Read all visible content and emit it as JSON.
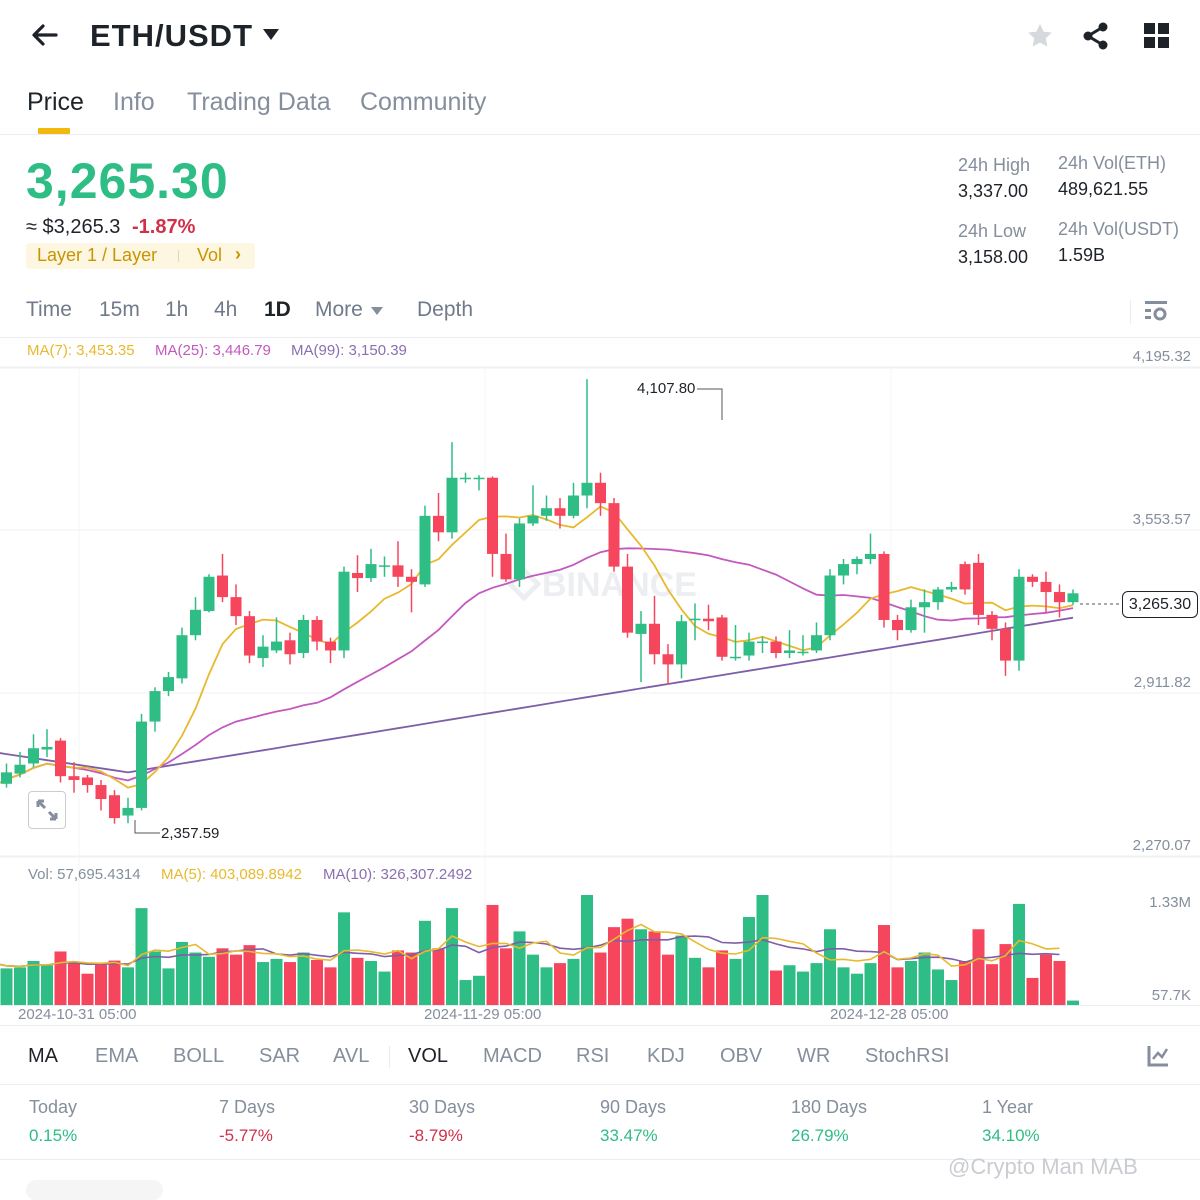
{
  "header": {
    "pair": "ETH/USDT",
    "icons": [
      "back-arrow-icon",
      "star-icon",
      "share-icon",
      "grid-icon"
    ]
  },
  "tabs": [
    {
      "label": "Price",
      "active": true
    },
    {
      "label": "Info",
      "active": false
    },
    {
      "label": "Trading Data",
      "active": false
    },
    {
      "label": "Community",
      "active": false
    }
  ],
  "ticker": {
    "last_price": "3,265.30",
    "approx_usd": "≈ $3,265.3",
    "change_pct": "-1.87%",
    "tag_category": "Layer 1 / Layer",
    "tag_vol": "Vol",
    "tag_chevron": "›",
    "high_label": "24h High",
    "high_value": "3,337.00",
    "low_label": "24h Low",
    "low_value": "3,158.00",
    "vol_base_label": "24h Vol(ETH)",
    "vol_base_value": "489,621.55",
    "vol_quote_label": "24h Vol(USDT)",
    "vol_quote_value": "1.59B"
  },
  "timeframes": {
    "items": [
      "Time",
      "15m",
      "1h",
      "4h",
      "1D",
      "More",
      "Depth"
    ],
    "active": "1D"
  },
  "ma_legend": {
    "ma7": "MA(7): 3,453.35",
    "ma25": "MA(25): 3,446.79",
    "ma99": "MA(99): 3,150.39"
  },
  "price_axis": [
    "4,195.32",
    "3,553.57",
    "2,911.82",
    "2,270.07"
  ],
  "annotations": {
    "high": "4,107.80",
    "low": "2,357.59",
    "last": "3,265.30"
  },
  "vol_legend": {
    "vol": "Vol: 57,695.4314",
    "ma5": "MA(5): 403,089.8942",
    "ma10": "MA(10): 326,307.2492"
  },
  "vol_axis": [
    "1.33M",
    "57.7K"
  ],
  "date_axis": [
    "2024-10-31 05:00",
    "2024-11-29 05:00",
    "2024-12-28 05:00"
  ],
  "watermark_chart": "BINANCE",
  "indicators": {
    "items": [
      "MA",
      "EMA",
      "BOLL",
      "SAR",
      "AVL",
      "VOL",
      "MACD",
      "RSI",
      "KDJ",
      "OBV",
      "WR",
      "StochRSI"
    ],
    "active": [
      "MA",
      "VOL"
    ]
  },
  "performance": [
    {
      "label": "Today",
      "value": "0.15%",
      "dir": "up"
    },
    {
      "label": "7 Days",
      "value": "-5.77%",
      "dir": "down"
    },
    {
      "label": "30 Days",
      "value": "-8.79%",
      "dir": "down"
    },
    {
      "label": "90 Days",
      "value": "33.47%",
      "dir": "up"
    },
    {
      "label": "180 Days",
      "value": "26.79%",
      "dir": "up"
    },
    {
      "label": "1 Year",
      "value": "34.10%",
      "dir": "up"
    }
  ],
  "watermark": "@Crypto Man MAB",
  "colors": {
    "up": "#2ebd85",
    "down": "#f6465d",
    "ma7": "#e8b92e",
    "ma25": "#c359bf",
    "ma99": "#7f5ea8",
    "accent": "#f0b90b"
  },
  "chart_data": {
    "type": "candlestick",
    "title": "ETH/USDT 1D",
    "ylim": [
      2270.07,
      4195.32
    ],
    "y_ticks": [
      4195.32,
      3553.57,
      2911.82,
      2270.07
    ],
    "x_ticks": [
      "2024-10-31 05:00",
      "2024-11-29 05:00",
      "2024-12-28 05:00"
    ],
    "ohlc": [
      [
        2545,
        2505,
        2600,
        2480
      ],
      [
        2515,
        2560,
        2595,
        2500
      ],
      [
        2555,
        2590,
        2640,
        2540
      ],
      [
        2595,
        2655,
        2710,
        2580
      ],
      [
        2650,
        2660,
        2730,
        2620
      ],
      [
        2685,
        2545,
        2695,
        2520
      ],
      [
        2545,
        2530,
        2600,
        2480
      ],
      [
        2540,
        2510,
        2550,
        2480
      ],
      [
        2510,
        2455,
        2530,
        2410
      ],
      [
        2470,
        2380,
        2490,
        2358
      ],
      [
        2390,
        2420,
        2460,
        2360
      ],
      [
        2420,
        2760,
        2790,
        2410
      ],
      [
        2760,
        2880,
        2895,
        2720
      ],
      [
        2880,
        2935,
        2955,
        2860
      ],
      [
        2930,
        3100,
        3130,
        2910
      ],
      [
        3100,
        3200,
        3250,
        3080
      ],
      [
        3195,
        3330,
        3340,
        3190
      ],
      [
        3335,
        3250,
        3420,
        3230
      ],
      [
        3250,
        3175,
        3300,
        3140
      ],
      [
        3175,
        3020,
        3195,
        2990
      ],
      [
        3010,
        3055,
        3100,
        2975
      ],
      [
        3040,
        3075,
        3170,
        3030
      ],
      [
        3080,
        3025,
        3110,
        2985
      ],
      [
        3030,
        3160,
        3180,
        3010
      ],
      [
        3160,
        3075,
        3175,
        3040
      ],
      [
        3075,
        3040,
        3090,
        2990
      ],
      [
        3040,
        3350,
        3370,
        3010
      ],
      [
        3345,
        3325,
        3415,
        3270
      ],
      [
        3325,
        3380,
        3440,
        3310
      ],
      [
        3375,
        3375,
        3410,
        3330
      ],
      [
        3375,
        3330,
        3470,
        3290
      ],
      [
        3330,
        3310,
        3360,
        3190
      ],
      [
        3300,
        3570,
        3610,
        3290
      ],
      [
        3570,
        3505,
        3660,
        3470
      ],
      [
        3505,
        3720,
        3860,
        3480
      ],
      [
        3720,
        3720,
        3740,
        3700
      ],
      [
        3720,
        3720,
        3730,
        3670
      ],
      [
        3720,
        3420,
        3725,
        3330
      ],
      [
        3420,
        3320,
        3500,
        3310
      ],
      [
        3320,
        3540,
        3560,
        3290
      ],
      [
        3540,
        3570,
        3690,
        3530
      ],
      [
        3570,
        3600,
        3650,
        3550
      ],
      [
        3600,
        3570,
        3640,
        3520
      ],
      [
        3570,
        3650,
        3700,
        3560
      ],
      [
        3650,
        3700,
        4108,
        3600
      ],
      [
        3700,
        3620,
        3740,
        3570
      ],
      [
        3620,
        3370,
        3640,
        3350
      ],
      [
        3370,
        3110,
        3420,
        3090
      ],
      [
        3105,
        3145,
        3195,
        2915
      ],
      [
        3145,
        3025,
        3255,
        2985
      ],
      [
        3025,
        2985,
        3065,
        2905
      ],
      [
        2985,
        3155,
        3180,
        2930
      ],
      [
        3160,
        3165,
        3225,
        3080
      ],
      [
        3165,
        3155,
        3220,
        3120
      ],
      [
        3170,
        3015,
        3180,
        3000
      ],
      [
        3015,
        3015,
        3140,
        3000
      ],
      [
        3020,
        3075,
        3110,
        3000
      ],
      [
        3075,
        3075,
        3095,
        3030
      ],
      [
        3075,
        3030,
        3095,
        3010
      ],
      [
        3030,
        3040,
        3120,
        3010
      ],
      [
        3030,
        3035,
        3100,
        3020
      ],
      [
        3040,
        3100,
        3150,
        3030
      ],
      [
        3100,
        3335,
        3360,
        3080
      ],
      [
        3335,
        3380,
        3400,
        3300
      ],
      [
        3380,
        3400,
        3410,
        3340
      ],
      [
        3400,
        3420,
        3500,
        3380
      ],
      [
        3420,
        3160,
        3430,
        3130
      ],
      [
        3160,
        3120,
        3180,
        3080
      ],
      [
        3120,
        3210,
        3240,
        3110
      ],
      [
        3210,
        3230,
        3280,
        3110
      ],
      [
        3230,
        3280,
        3290,
        3200
      ],
      [
        3280,
        3290,
        3310,
        3270
      ],
      [
        3380,
        3280,
        3390,
        3260
      ],
      [
        3385,
        3180,
        3420,
        3140
      ],
      [
        3180,
        3125,
        3195,
        3080
      ],
      [
        3125,
        3000,
        3150,
        2940
      ],
      [
        3000,
        3330,
        3360,
        2960
      ],
      [
        3330,
        3310,
        3340,
        3290
      ],
      [
        3310,
        3270,
        3350,
        3190
      ],
      [
        3270,
        3230,
        3300,
        3170
      ],
      [
        3230,
        3265,
        3280,
        3220
      ]
    ],
    "ma7_label": "MA(7): 3,453.35",
    "ma25_label": "MA(25): 3,446.79",
    "ma99_label": "MA(99): 3,150.39",
    "volume": {
      "ylim": [
        57700,
        1330000
      ],
      "labels": [
        "1.33M",
        "57.7K"
      ],
      "last_vol": 57695.4314,
      "ma5": 403089.8942,
      "ma10": 326307.2492
    },
    "annotations": {
      "high": 4107.8,
      "low": 2357.59,
      "last": 3265.3
    }
  }
}
